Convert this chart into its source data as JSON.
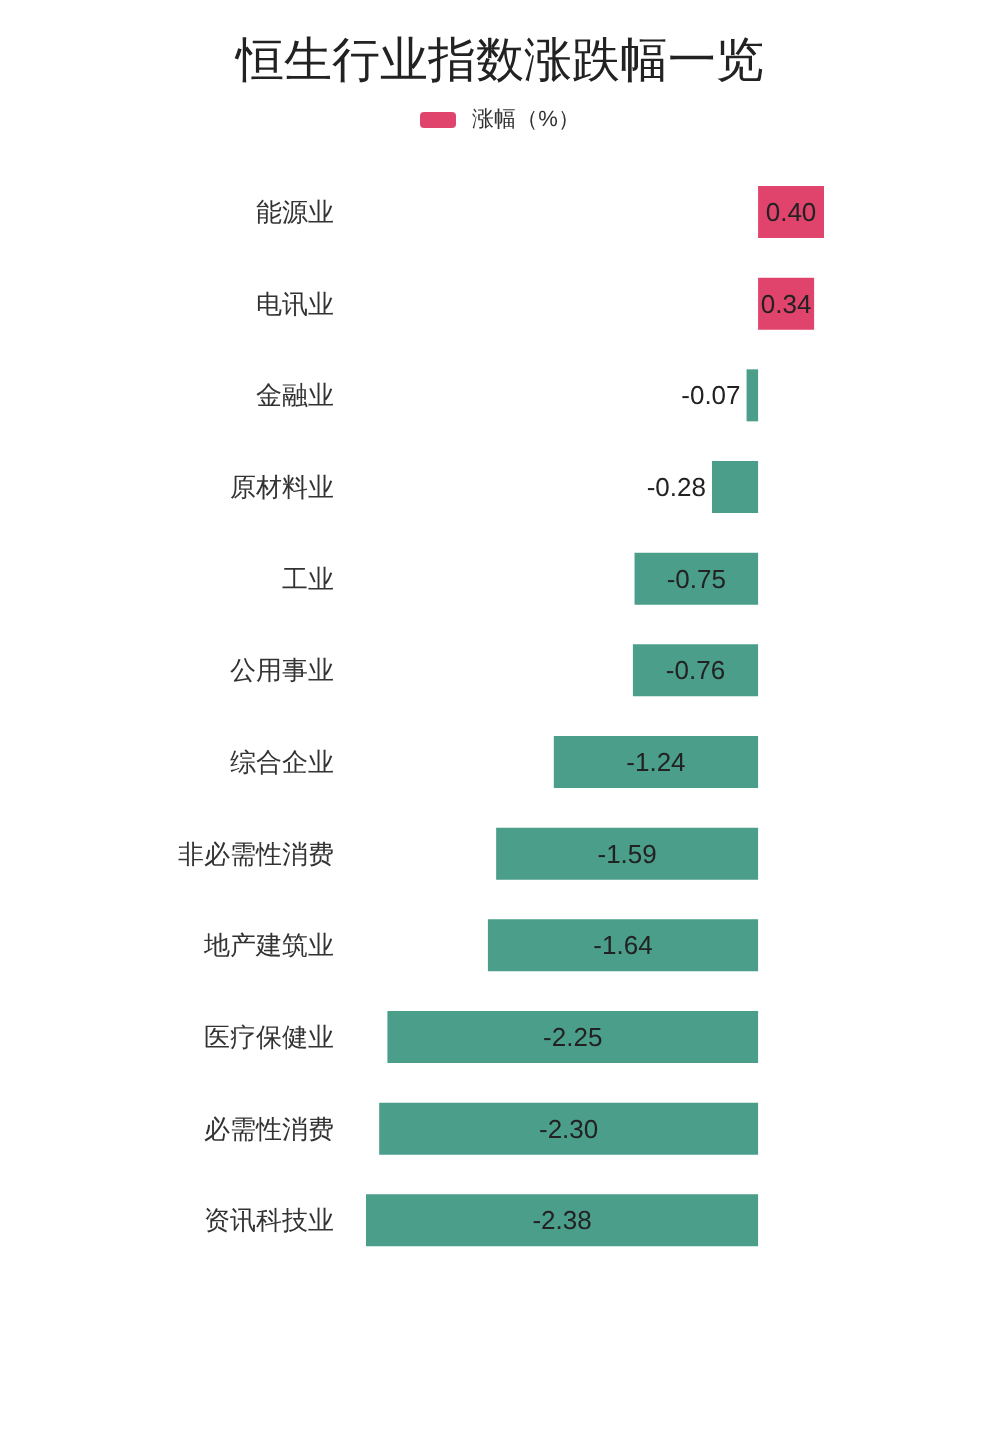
{
  "chart_data": {
    "type": "bar",
    "orientation": "horizontal",
    "title": "恒生行业指数涨跌幅一览",
    "categories": [
      "能源业",
      "电讯业",
      "金融业",
      "原材料业",
      "工业",
      "公用事业",
      "综合企业",
      "非必需性消费",
      "地产建筑业",
      "医疗保健业",
      "必需性消费",
      "资讯科技业"
    ],
    "series": [
      {
        "name": "涨幅（%）",
        "color": "#e0436b",
        "values": [
          0.4,
          0.34,
          -0.07,
          -0.28,
          -0.75,
          -0.76,
          -1.24,
          -1.59,
          -1.64,
          -2.25,
          -2.3,
          -2.38
        ],
        "value_labels": [
          "0.40",
          "0.34",
          "-0.07",
          "-0.28",
          "-0.75",
          "-0.76",
          "-1.24",
          "-1.59",
          "-1.64",
          "-2.25",
          "-2.30",
          "-2.38"
        ],
        "colors": [
          "#e0436b",
          "#e0436b",
          "#4a9e8a",
          "#4a9e8a",
          "#4a9e8a",
          "#4a9e8a",
          "#4a9e8a",
          "#4a9e8a",
          "#4a9e8a",
          "#4a9e8a",
          "#4a9e8a",
          "#4a9e8a"
        ]
      }
    ],
    "legend": "top",
    "grid": false
  }
}
